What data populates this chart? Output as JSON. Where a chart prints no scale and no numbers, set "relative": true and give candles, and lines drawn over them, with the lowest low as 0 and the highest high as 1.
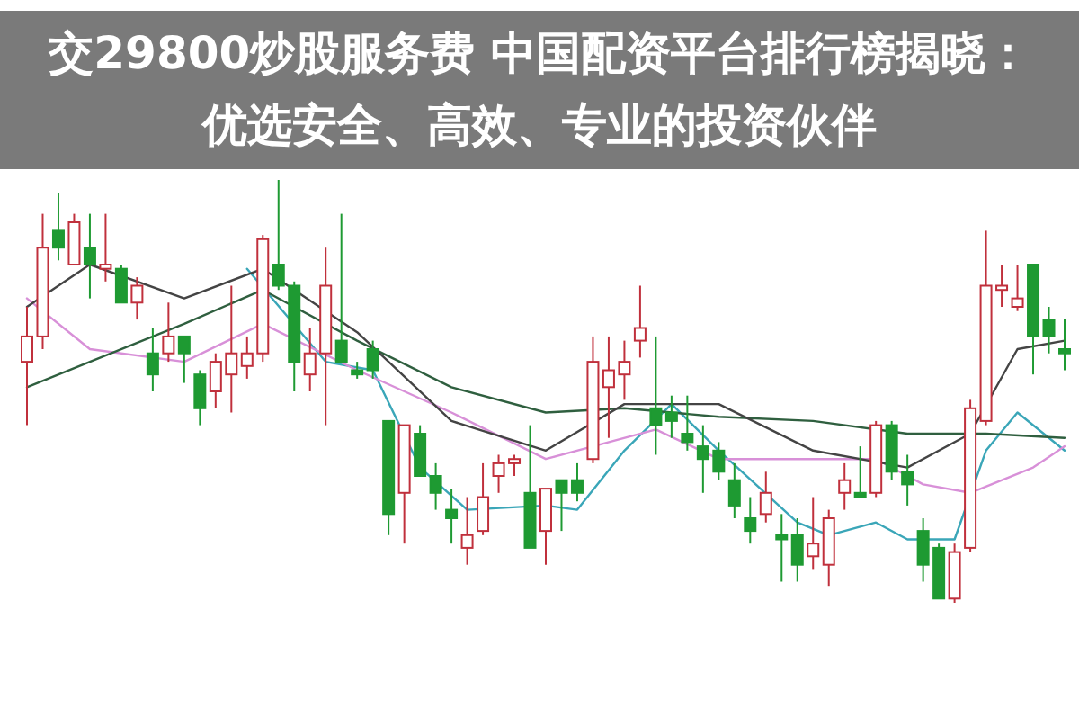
{
  "chart_data": {
    "type": "candlestick",
    "title": "交29800炒股服务费 中国配资平台排行榜揭晓：优选安全、高效、专业的投资伙伴",
    "relative": true,
    "categories": [
      null,
      null,
      null,
      null,
      null,
      null,
      null,
      null,
      null,
      null,
      null,
      null,
      null,
      null,
      null,
      null,
      null,
      null,
      null,
      null,
      null,
      null,
      null,
      null,
      null,
      null,
      null,
      null,
      null,
      null,
      null,
      null,
      null,
      null,
      null,
      null,
      null,
      null,
      null,
      null,
      null,
      null,
      null,
      null,
      null,
      null,
      null,
      null,
      null,
      null,
      null,
      null,
      null,
      null,
      null,
      null,
      null,
      null,
      null,
      null,
      null,
      null,
      null,
      null,
      null,
      null,
      null
    ],
    "ohlc": [
      [
        0.57,
        0.7,
        0.42,
        0.63
      ],
      [
        0.63,
        0.92,
        0.6,
        0.84
      ],
      [
        0.88,
        0.97,
        0.81,
        0.84
      ],
      [
        0.8,
        0.92,
        0.8,
        0.9
      ],
      [
        0.84,
        0.92,
        0.72,
        0.8
      ],
      [
        0.79,
        0.92,
        0.76,
        0.8
      ],
      [
        0.79,
        0.8,
        0.71,
        0.71
      ],
      [
        0.71,
        0.77,
        0.67,
        0.75
      ],
      [
        0.59,
        0.65,
        0.5,
        0.54
      ],
      [
        0.59,
        0.71,
        0.57,
        0.63
      ],
      [
        0.63,
        0.63,
        0.52,
        0.59
      ],
      [
        0.54,
        0.55,
        0.42,
        0.46
      ],
      [
        0.5,
        0.59,
        0.46,
        0.57
      ],
      [
        0.54,
        0.75,
        0.45,
        0.59
      ],
      [
        0.56,
        0.63,
        0.53,
        0.59
      ],
      [
        0.59,
        0.87,
        0.57,
        0.86
      ],
      [
        0.8,
        1.0,
        0.74,
        0.75
      ],
      [
        0.75,
        0.76,
        0.5,
        0.57
      ],
      [
        0.54,
        0.65,
        0.5,
        0.59
      ],
      [
        0.59,
        0.84,
        0.42,
        0.75
      ],
      [
        0.62,
        0.92,
        0.57,
        0.57
      ],
      [
        0.55,
        0.57,
        0.53,
        0.54
      ],
      [
        0.6,
        0.62,
        0.53,
        0.55
      ],
      [
        0.43,
        0.43,
        0.16,
        0.21
      ],
      [
        0.26,
        0.42,
        0.14,
        0.42
      ],
      [
        0.4,
        0.42,
        0.3,
        0.3
      ],
      [
        0.3,
        0.33,
        0.22,
        0.26
      ],
      [
        0.22,
        0.27,
        0.14,
        0.2
      ],
      [
        0.13,
        0.25,
        0.09,
        0.16
      ],
      [
        0.17,
        0.33,
        0.16,
        0.25
      ],
      [
        0.3,
        0.35,
        0.26,
        0.33
      ],
      [
        0.33,
        0.35,
        0.3,
        0.34
      ],
      [
        0.26,
        0.42,
        0.13,
        0.13
      ],
      [
        0.17,
        0.27,
        0.09,
        0.27
      ],
      [
        0.29,
        0.29,
        0.17,
        0.26
      ],
      [
        0.29,
        0.33,
        0.24,
        0.26
      ],
      [
        0.34,
        0.63,
        0.33,
        0.57
      ],
      [
        0.51,
        0.63,
        0.39,
        0.55
      ],
      [
        0.54,
        0.62,
        0.48,
        0.57
      ],
      [
        0.62,
        0.75,
        0.58,
        0.65
      ],
      [
        0.46,
        0.63,
        0.35,
        0.42
      ],
      [
        0.45,
        0.49,
        0.39,
        0.43
      ],
      [
        0.4,
        0.49,
        0.36,
        0.38
      ],
      [
        0.37,
        0.42,
        0.26,
        0.34
      ],
      [
        0.36,
        0.38,
        0.29,
        0.31
      ],
      [
        0.29,
        0.33,
        0.2,
        0.23
      ],
      [
        0.2,
        0.25,
        0.14,
        0.17
      ],
      [
        0.21,
        0.31,
        0.19,
        0.26
      ],
      [
        0.16,
        0.21,
        0.05,
        0.15
      ],
      [
        0.16,
        0.2,
        0.05,
        0.09
      ],
      [
        0.11,
        0.25,
        0.08,
        0.14
      ],
      [
        0.09,
        0.22,
        0.04,
        0.2
      ],
      [
        0.26,
        0.33,
        0.22,
        0.29
      ],
      [
        0.26,
        0.37,
        0.25,
        0.25
      ],
      [
        0.26,
        0.43,
        0.25,
        0.42
      ],
      [
        0.42,
        0.43,
        0.29,
        0.31
      ],
      [
        0.31,
        0.35,
        0.23,
        0.28
      ],
      [
        0.17,
        0.2,
        0.05,
        0.09
      ],
      [
        0.13,
        0.14,
        0.01,
        0.01
      ],
      [
        0.01,
        0.14,
        0.0,
        0.12
      ],
      [
        0.13,
        0.48,
        0.12,
        0.46
      ],
      [
        0.43,
        0.88,
        0.42,
        0.75
      ],
      [
        0.74,
        0.8,
        0.7,
        0.75
      ],
      [
        0.7,
        0.8,
        0.69,
        0.72
      ],
      [
        0.8,
        0.8,
        0.54,
        0.63
      ],
      [
        0.67,
        0.7,
        0.59,
        0.63
      ],
      [
        0.6,
        0.67,
        0.55,
        0.59
      ]
    ],
    "series": [
      {
        "type": "line",
        "color": "#3aa6b8",
        "values": [
          null,
          null,
          null,
          null,
          null,
          null,
          null,
          null,
          null,
          null,
          null,
          null,
          null,
          null,
          0.79,
          null,
          null,
          null,
          null,
          0.57,
          null,
          null,
          0.55,
          null,
          null,
          0.32,
          null,
          null,
          0.22,
          null,
          null,
          null,
          null,
          0.23,
          null,
          0.22,
          null,
          null,
          0.36,
          null,
          null,
          0.47,
          null,
          null,
          0.36,
          null,
          null,
          null,
          null,
          0.19,
          null,
          0.16,
          null,
          null,
          0.19,
          null,
          0.15,
          null,
          null,
          0.15,
          null,
          0.36,
          null,
          0.45,
          null,
          null,
          0.36
        ]
      },
      {
        "type": "line",
        "color": "#d890d8",
        "values": [
          0.72,
          null,
          null,
          null,
          0.6,
          null,
          null,
          null,
          null,
          null,
          0.57,
          null,
          null,
          null,
          null,
          0.66,
          null,
          null,
          null,
          null,
          null,
          0.55,
          null,
          null,
          null,
          null,
          null,
          0.45,
          null,
          null,
          null,
          null,
          null,
          0.34,
          null,
          null,
          0.37,
          null,
          null,
          null,
          0.41,
          null,
          null,
          null,
          0.34,
          null,
          null,
          null,
          null,
          null,
          0.34,
          null,
          null,
          null,
          0.34,
          null,
          null,
          0.28,
          null,
          null,
          0.26,
          null,
          null,
          null,
          0.32,
          null,
          0.37
        ]
      },
      {
        "type": "line",
        "color": "#2f5f3f",
        "values": [
          0.51,
          null,
          null,
          null,
          0.57,
          null,
          null,
          null,
          null,
          null,
          0.66,
          null,
          null,
          null,
          null,
          0.74,
          null,
          null,
          null,
          null,
          null,
          0.62,
          null,
          null,
          null,
          null,
          null,
          0.51,
          null,
          null,
          null,
          null,
          null,
          0.45,
          null,
          null,
          null,
          null,
          0.46,
          null,
          null,
          null,
          null,
          null,
          0.44,
          null,
          null,
          null,
          null,
          null,
          0.43,
          null,
          null,
          null,
          null,
          null,
          0.4,
          null,
          null,
          null,
          null,
          0.4,
          null,
          null,
          null,
          null,
          0.39
        ]
      },
      {
        "type": "line",
        "color": "#444444",
        "values": [
          0.7,
          null,
          null,
          null,
          0.8,
          null,
          null,
          null,
          null,
          null,
          0.72,
          null,
          null,
          null,
          null,
          0.79,
          null,
          null,
          null,
          null,
          null,
          0.64,
          null,
          null,
          null,
          null,
          null,
          0.43,
          null,
          null,
          null,
          null,
          null,
          0.36,
          null,
          null,
          null,
          null,
          0.47,
          null,
          null,
          null,
          null,
          null,
          0.47,
          null,
          null,
          null,
          null,
          null,
          0.36,
          null,
          null,
          null,
          null,
          null,
          0.32,
          null,
          null,
          null,
          0.4,
          null,
          null,
          0.6,
          null,
          null,
          0.62
        ]
      }
    ]
  }
}
